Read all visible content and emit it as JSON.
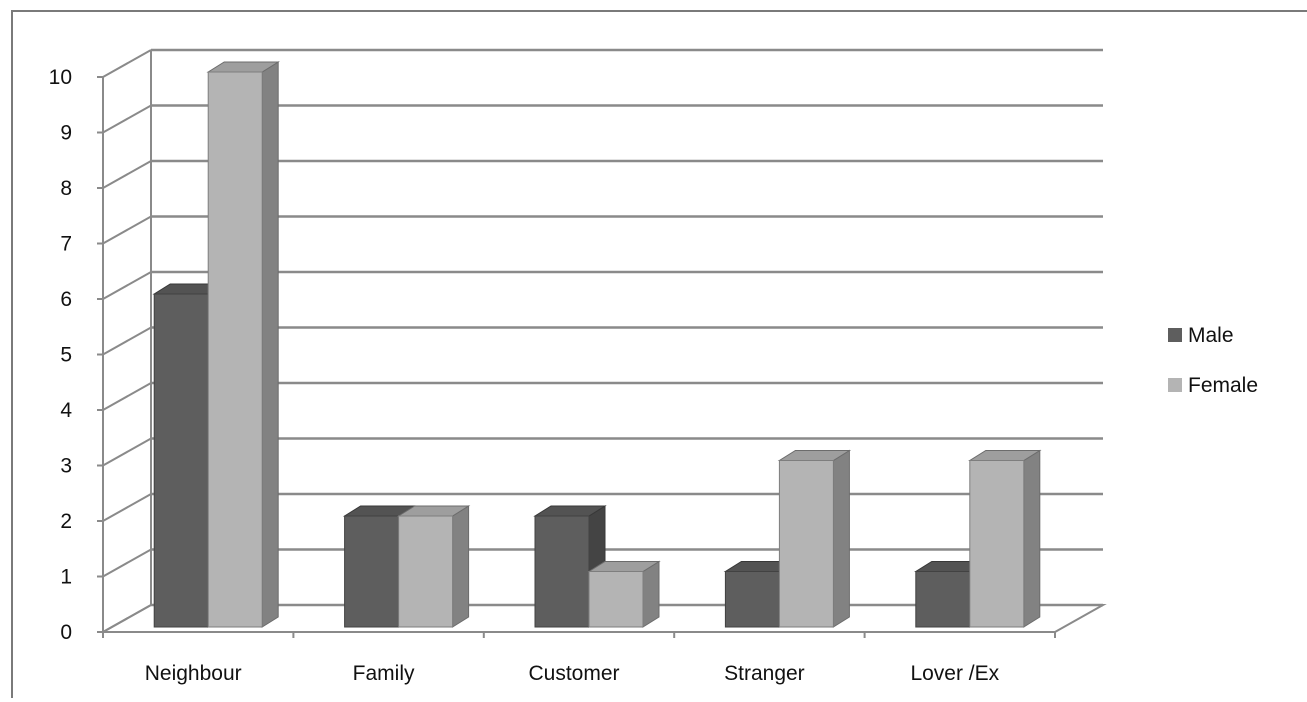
{
  "chart_data": {
    "type": "bar",
    "title": "",
    "xlabel": "",
    "ylabel": "",
    "categories": [
      "Neighbour",
      "Family",
      "Customer",
      "Stranger",
      "Lover /Ex"
    ],
    "series": [
      {
        "name": "Male",
        "values": [
          6,
          2,
          2,
          1,
          1
        ],
        "color": "#5e5e5e"
      },
      {
        "name": "Female",
        "values": [
          10,
          2,
          1,
          3,
          3
        ],
        "color": "#b4b4b4"
      }
    ],
    "ylim": [
      0,
      10
    ],
    "yticks": [
      "0",
      "1",
      "2",
      "3",
      "4",
      "5",
      "6",
      "7",
      "8",
      "9",
      "10"
    ],
    "grid": true,
    "legend_position": "right",
    "style": "3d-clustered-column"
  }
}
